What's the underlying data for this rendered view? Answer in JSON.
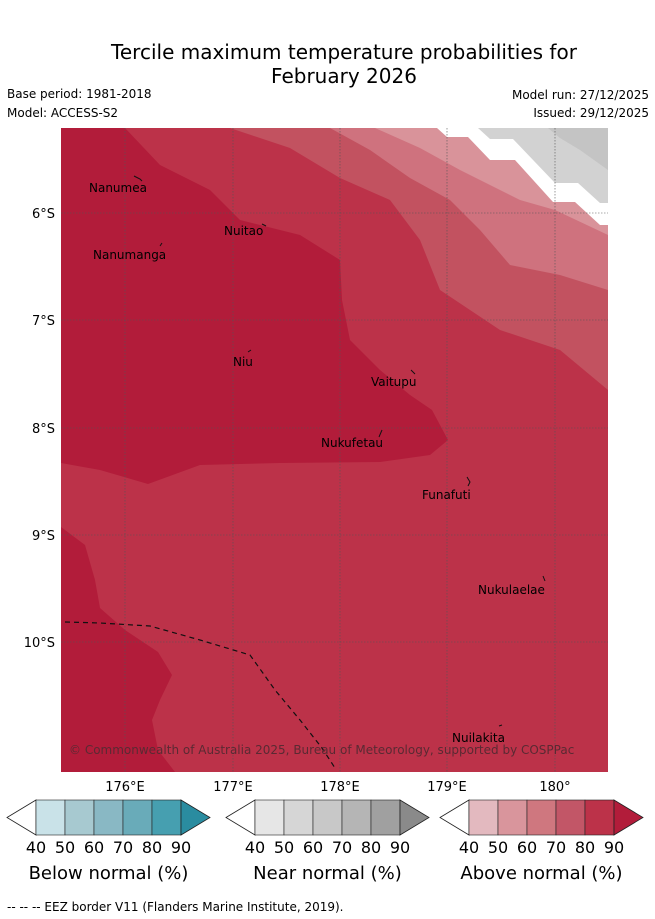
{
  "title": {
    "line1": "Tercile maximum temperature probabilities for",
    "line2": "February 2026"
  },
  "meta": {
    "base_period": "Base period: 1981-2018",
    "model": "Model: ACCESS-S2",
    "model_run": "Model run: 27/12/2025",
    "issued": "Issued: 29/12/2025"
  },
  "map": {
    "lat_labels": [
      "6°S",
      "7°S",
      "8°S",
      "9°S",
      "10°S"
    ],
    "lon_labels": [
      "176°E",
      "177°E",
      "178°E",
      "179°E",
      "180°"
    ],
    "places": [
      "Nanumea",
      "Nuitao",
      "Nanumanga",
      "Niu",
      "Vaitupu",
      "Nukufetau",
      "Funafuti",
      "Nukulaelae",
      "Nuilakita"
    ],
    "copyright": "© Commonwealth of Australia 2025, Bureau of Meteorology, supported by COSPPac",
    "colors": {
      "above_70_80": "#c25260",
      "above_80_90": "#bc3249",
      "above_90": "#b21c3a",
      "above_60_70": "#cf727e",
      "above_50_60": "#d9939a",
      "near_40_50": "#d2d2d2"
    }
  },
  "legends": [
    {
      "label": "Below normal (%)",
      "ticks": [
        "40",
        "50",
        "60",
        "70",
        "80",
        "90"
      ],
      "colors": [
        "#ffffff",
        "#c9e2e8",
        "#a7c9d0",
        "#89b8c4",
        "#69abb9",
        "#469fb0",
        "#2a8ca0"
      ]
    },
    {
      "label": "Near normal (%)",
      "ticks": [
        "40",
        "50",
        "60",
        "70",
        "80",
        "90"
      ],
      "colors": [
        "#ffffff",
        "#e6e6e6",
        "#d6d6d6",
        "#c8c8c8",
        "#b5b5b5",
        "#a0a0a0",
        "#8a8a8a"
      ]
    },
    {
      "label": "Above normal (%)",
      "ticks": [
        "40",
        "50",
        "60",
        "70",
        "80",
        "90"
      ],
      "colors": [
        "#ffffff",
        "#e3b9bf",
        "#d9959c",
        "#cf777f",
        "#c25667",
        "#bc3249",
        "#b21c3a"
      ]
    }
  ],
  "footer": "-- -- -- EEZ border V11 (Flanders Marine Institute, 2019)."
}
